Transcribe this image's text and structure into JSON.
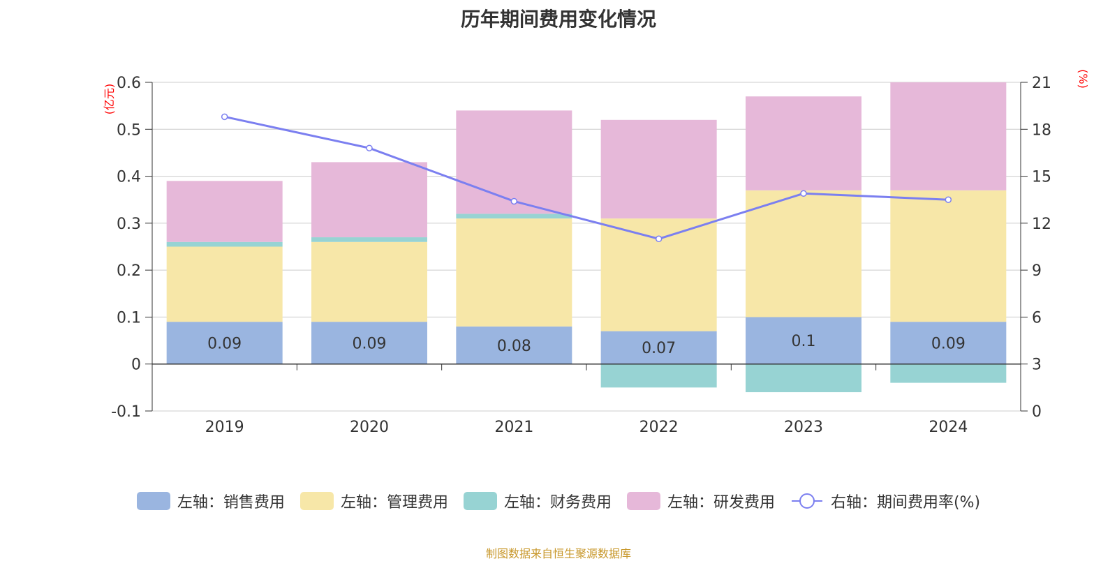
{
  "title": "历年期间费用变化情况",
  "footer": "制图数据来自恒生聚源数据库",
  "colors": {
    "sales": "#9ab5e0",
    "admin": "#f7e7a8",
    "finance": "#97d3d3",
    "rd": "#e6b8d9",
    "rate_line": "#7b7ff0",
    "axis_unit": "#ff0000"
  },
  "chart_data": {
    "type": "bar",
    "stacked": true,
    "title": "历年期间费用变化情况",
    "categories": [
      "2019",
      "2020",
      "2021",
      "2022",
      "2023",
      "2024"
    ],
    "left_axis": {
      "unit": "(亿元)",
      "ylim": [
        -0.1,
        0.6
      ],
      "ticks": [
        "-0.1",
        "0",
        "0.1",
        "0.2",
        "0.3",
        "0.4",
        "0.5",
        "0.6"
      ]
    },
    "right_axis": {
      "unit": "(%)",
      "ylim": [
        0,
        21
      ],
      "ticks": [
        "0",
        "3",
        "6",
        "9",
        "12",
        "15",
        "18",
        "21"
      ]
    },
    "series": [
      {
        "name": "左轴：销售费用",
        "key": "sales",
        "axis": "left",
        "values": [
          0.09,
          0.09,
          0.08,
          0.07,
          0.1,
          0.09
        ],
        "labels": [
          "0.09",
          "0.09",
          "0.08",
          "0.07",
          "0.1",
          "0.09"
        ]
      },
      {
        "name": "左轴：管理费用",
        "key": "admin",
        "axis": "left",
        "values": [
          0.16,
          0.17,
          0.23,
          0.24,
          0.27,
          0.28
        ]
      },
      {
        "name": "左轴：财务费用",
        "key": "finance",
        "axis": "left",
        "values": [
          0.01,
          0.01,
          0.01,
          -0.05,
          -0.06,
          -0.04
        ]
      },
      {
        "name": "左轴：研发费用",
        "key": "rd",
        "axis": "left",
        "values": [
          0.13,
          0.16,
          0.22,
          0.21,
          0.2,
          0.23
        ]
      },
      {
        "name": "右轴：期间费用率(%)",
        "key": "rate_line",
        "axis": "right",
        "type": "line",
        "values": [
          18.8,
          16.8,
          13.4,
          11.0,
          13.9,
          13.5
        ]
      }
    ]
  }
}
